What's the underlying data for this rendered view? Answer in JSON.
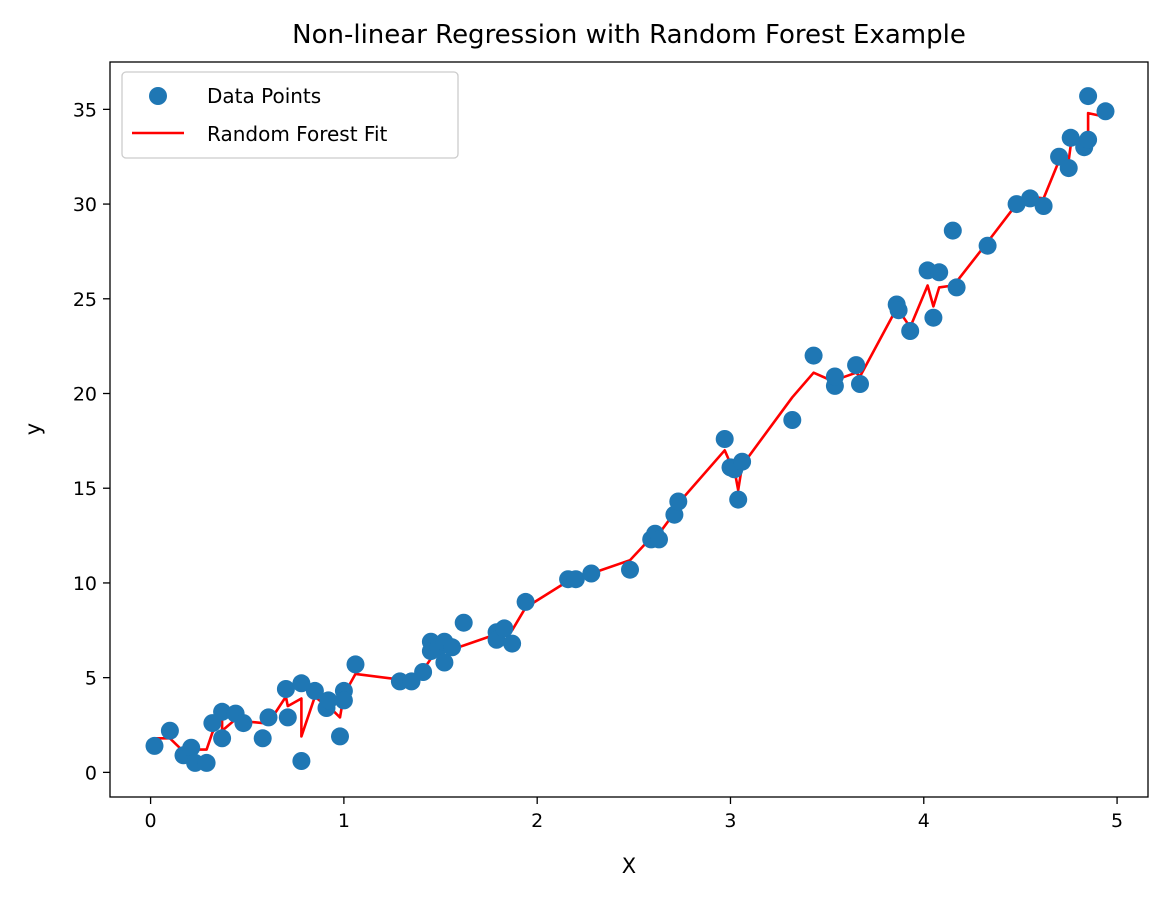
{
  "chart_data": {
    "type": "scatter",
    "title": "Non-linear Regression with Random Forest Example",
    "xlabel": "X",
    "ylabel": "y",
    "xlim": [
      -0.21,
      5.16
    ],
    "ylim": [
      -1.3,
      37.5
    ],
    "xticks": [
      0,
      1,
      2,
      3,
      4,
      5
    ],
    "yticks": [
      0,
      5,
      10,
      15,
      20,
      25,
      30,
      35
    ],
    "grid": false,
    "legend_position": "top-left",
    "series": [
      {
        "name": "Data Points",
        "kind": "scatter",
        "color": "#1f77b4",
        "points": [
          [
            0.02,
            1.4
          ],
          [
            0.1,
            2.2
          ],
          [
            0.17,
            0.9
          ],
          [
            0.21,
            1.3
          ],
          [
            0.23,
            0.5
          ],
          [
            0.29,
            0.5
          ],
          [
            0.32,
            2.6
          ],
          [
            0.37,
            3.2
          ],
          [
            0.37,
            1.8
          ],
          [
            0.44,
            3.1
          ],
          [
            0.48,
            2.6
          ],
          [
            0.58,
            1.8
          ],
          [
            0.61,
            2.9
          ],
          [
            0.7,
            4.4
          ],
          [
            0.71,
            2.9
          ],
          [
            0.78,
            4.7
          ],
          [
            0.78,
            0.6
          ],
          [
            0.85,
            4.3
          ],
          [
            0.91,
            3.4
          ],
          [
            0.92,
            3.8
          ],
          [
            0.98,
            1.9
          ],
          [
            1.0,
            4.3
          ],
          [
            1.0,
            3.8
          ],
          [
            1.06,
            5.7
          ],
          [
            1.29,
            4.8
          ],
          [
            1.35,
            4.8
          ],
          [
            1.41,
            5.3
          ],
          [
            1.45,
            6.9
          ],
          [
            1.45,
            6.4
          ],
          [
            1.49,
            6.6
          ],
          [
            1.52,
            6.9
          ],
          [
            1.52,
            5.8
          ],
          [
            1.56,
            6.6
          ],
          [
            1.62,
            7.9
          ],
          [
            1.79,
            7.4
          ],
          [
            1.79,
            7.0
          ],
          [
            1.83,
            7.6
          ],
          [
            1.87,
            6.8
          ],
          [
            1.94,
            9.0
          ],
          [
            2.16,
            10.2
          ],
          [
            2.2,
            10.2
          ],
          [
            2.28,
            10.5
          ],
          [
            2.48,
            10.7
          ],
          [
            2.59,
            12.3
          ],
          [
            2.61,
            12.6
          ],
          [
            2.63,
            12.3
          ],
          [
            2.71,
            13.6
          ],
          [
            2.73,
            14.3
          ],
          [
            2.97,
            17.6
          ],
          [
            3.0,
            16.1
          ],
          [
            3.02,
            16.0
          ],
          [
            3.04,
            14.4
          ],
          [
            3.06,
            16.4
          ],
          [
            3.32,
            18.6
          ],
          [
            3.43,
            22.0
          ],
          [
            3.54,
            20.4
          ],
          [
            3.54,
            20.9
          ],
          [
            3.65,
            21.5
          ],
          [
            3.67,
            20.5
          ],
          [
            3.86,
            24.7
          ],
          [
            3.87,
            24.4
          ],
          [
            3.93,
            23.3
          ],
          [
            4.02,
            26.5
          ],
          [
            4.05,
            24.0
          ],
          [
            4.08,
            26.4
          ],
          [
            4.15,
            28.6
          ],
          [
            4.17,
            25.6
          ],
          [
            4.33,
            27.8
          ],
          [
            4.48,
            30.0
          ],
          [
            4.55,
            30.3
          ],
          [
            4.62,
            29.9
          ],
          [
            4.7,
            32.5
          ],
          [
            4.75,
            31.9
          ],
          [
            4.76,
            33.5
          ],
          [
            4.83,
            33.0
          ],
          [
            4.85,
            33.4
          ],
          [
            4.85,
            35.7
          ],
          [
            4.94,
            34.9
          ]
        ]
      },
      {
        "name": "Random Forest Fit",
        "kind": "line",
        "color": "#ff0000",
        "points": [
          [
            0.02,
            1.8
          ],
          [
            0.1,
            1.8
          ],
          [
            0.17,
            1.1
          ],
          [
            0.21,
            1.2
          ],
          [
            0.23,
            1.2
          ],
          [
            0.29,
            1.2
          ],
          [
            0.32,
            2.1
          ],
          [
            0.37,
            2.9
          ],
          [
            0.37,
            2.2
          ],
          [
            0.44,
            2.8
          ],
          [
            0.48,
            2.7
          ],
          [
            0.58,
            2.6
          ],
          [
            0.61,
            2.6
          ],
          [
            0.7,
            4.0
          ],
          [
            0.71,
            3.5
          ],
          [
            0.78,
            3.9
          ],
          [
            0.78,
            1.9
          ],
          [
            0.85,
            4.0
          ],
          [
            0.91,
            3.5
          ],
          [
            0.92,
            3.5
          ],
          [
            0.98,
            2.9
          ],
          [
            1.0,
            4.1
          ],
          [
            1.0,
            4.1
          ],
          [
            1.06,
            5.2
          ],
          [
            1.29,
            4.9
          ],
          [
            1.35,
            5.0
          ],
          [
            1.41,
            5.4
          ],
          [
            1.45,
            6.0
          ],
          [
            1.45,
            6.2
          ],
          [
            1.49,
            6.3
          ],
          [
            1.52,
            6.4
          ],
          [
            1.52,
            6.4
          ],
          [
            1.56,
            6.5
          ],
          [
            1.62,
            6.7
          ],
          [
            1.79,
            7.3
          ],
          [
            1.79,
            7.2
          ],
          [
            1.83,
            7.4
          ],
          [
            1.87,
            7.5
          ],
          [
            1.94,
            8.7
          ],
          [
            2.16,
            10.1
          ],
          [
            2.2,
            10.2
          ],
          [
            2.28,
            10.5
          ],
          [
            2.48,
            11.2
          ],
          [
            2.59,
            12.4
          ],
          [
            2.61,
            12.5
          ],
          [
            2.63,
            12.6
          ],
          [
            2.71,
            13.7
          ],
          [
            2.73,
            14.2
          ],
          [
            2.97,
            17.0
          ],
          [
            3.0,
            16.3
          ],
          [
            3.02,
            16.0
          ],
          [
            3.04,
            14.9
          ],
          [
            3.06,
            16.2
          ],
          [
            3.32,
            19.8
          ],
          [
            3.43,
            21.1
          ],
          [
            3.54,
            20.6
          ],
          [
            3.54,
            20.7
          ],
          [
            3.65,
            21.1
          ],
          [
            3.67,
            20.9
          ],
          [
            3.86,
            24.5
          ],
          [
            3.87,
            24.4
          ],
          [
            3.93,
            23.5
          ],
          [
            4.02,
            25.7
          ],
          [
            4.05,
            24.6
          ],
          [
            4.08,
            25.6
          ],
          [
            4.15,
            25.7
          ],
          [
            4.17,
            25.9
          ],
          [
            4.33,
            28.0
          ],
          [
            4.48,
            30.0
          ],
          [
            4.55,
            30.4
          ],
          [
            4.62,
            30.3
          ],
          [
            4.7,
            32.3
          ],
          [
            4.75,
            32.3
          ],
          [
            4.76,
            33.1
          ],
          [
            4.83,
            33.4
          ],
          [
            4.85,
            33.3
          ],
          [
            4.85,
            34.8
          ],
          [
            4.94,
            34.6
          ]
        ]
      }
    ]
  }
}
